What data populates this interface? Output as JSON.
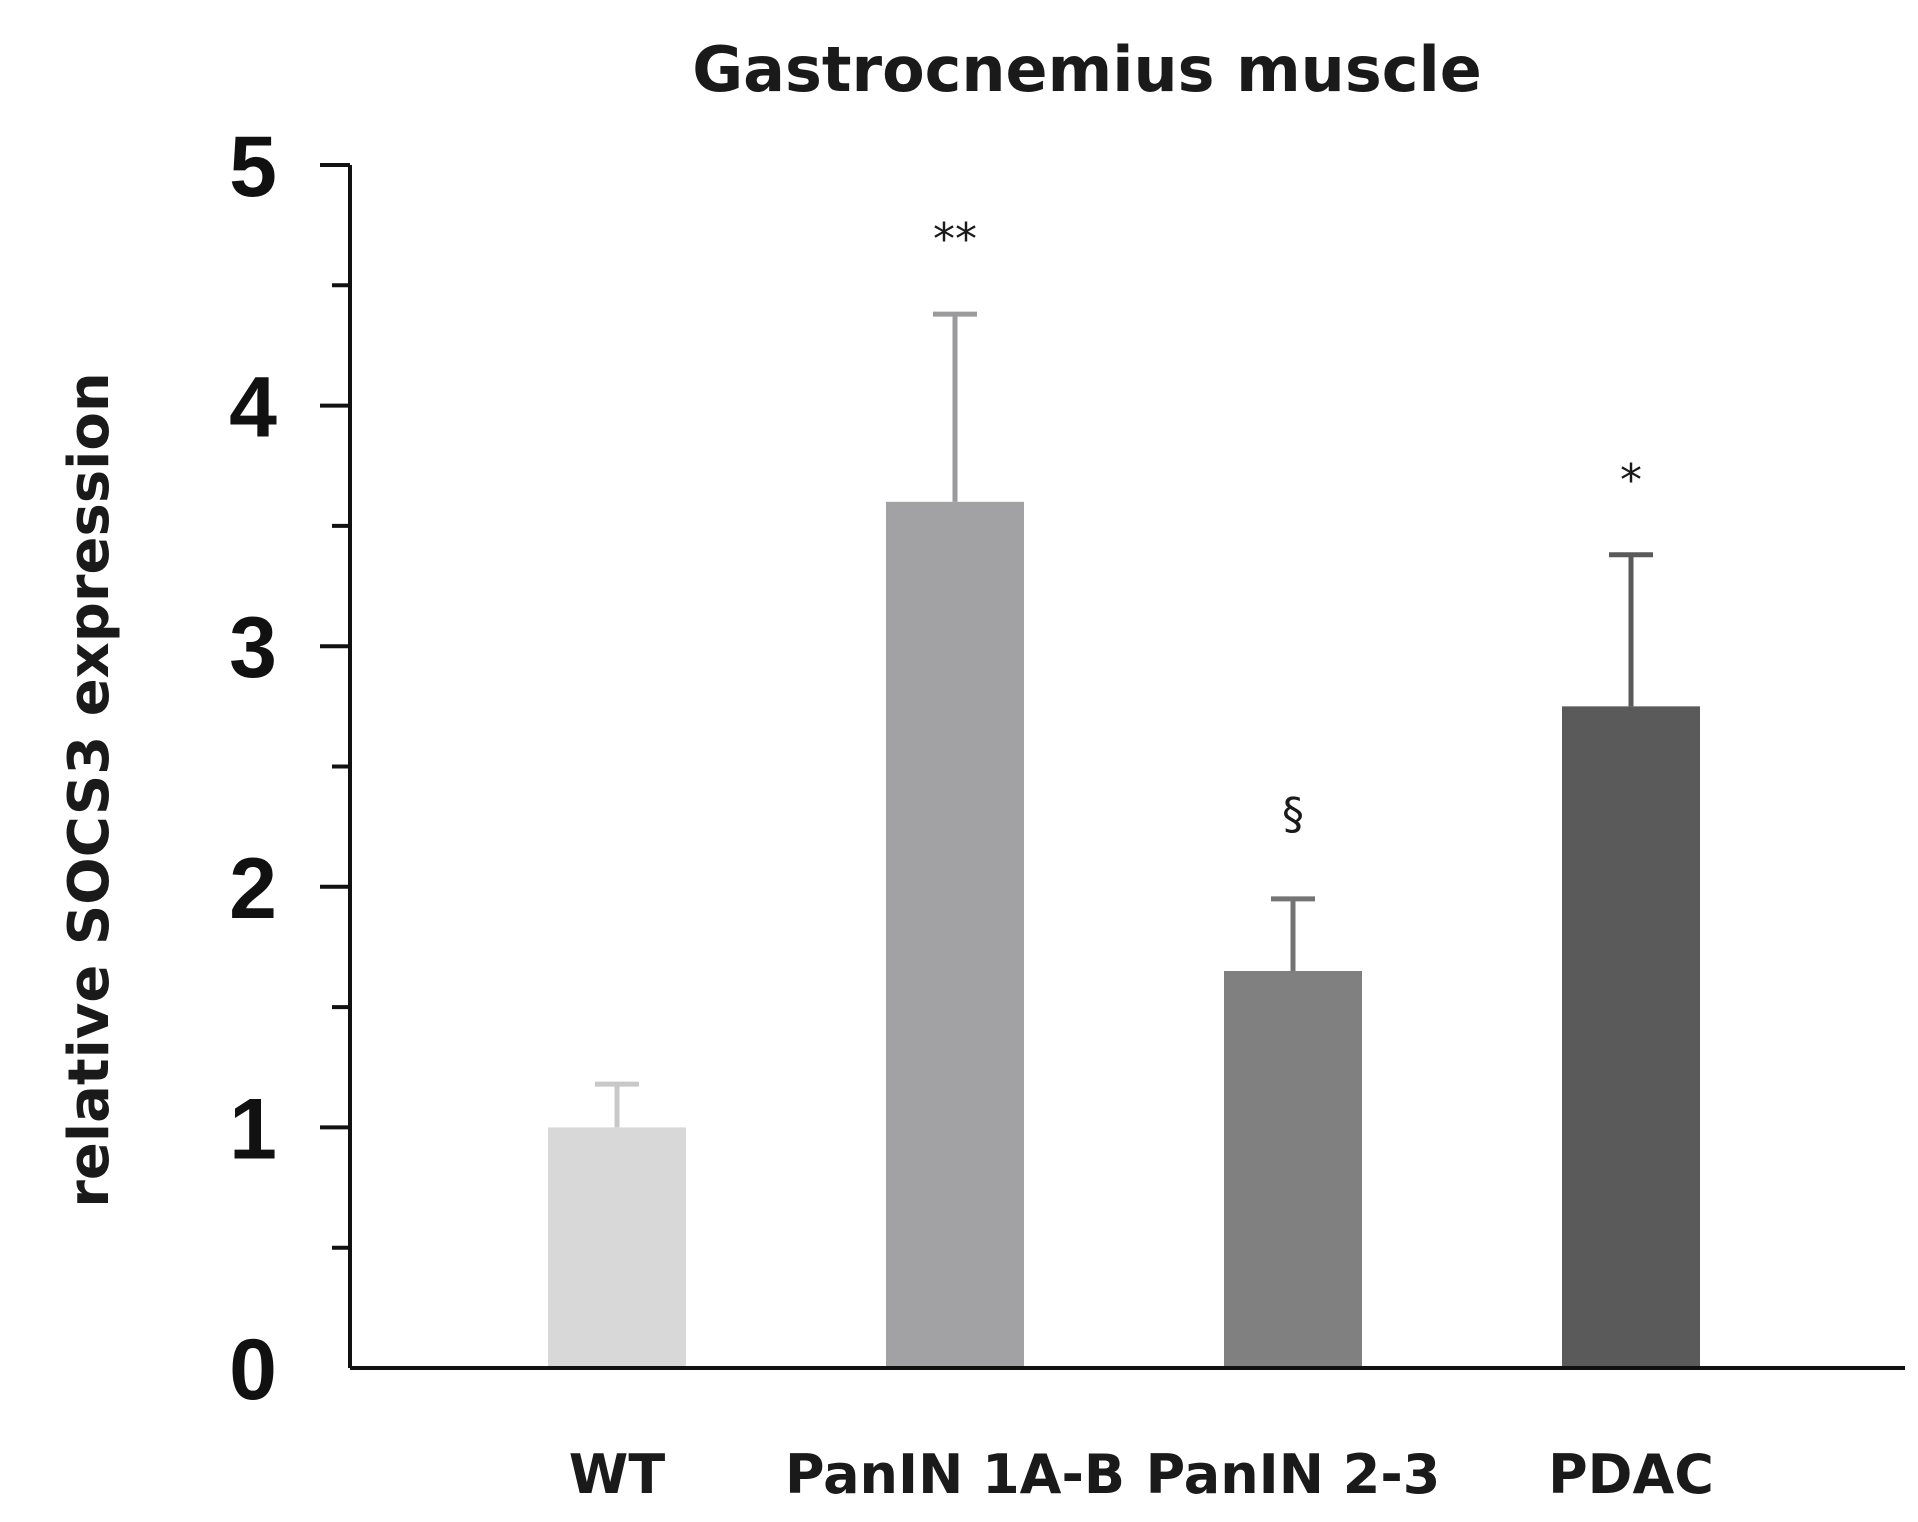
{
  "chart_data": {
    "type": "bar",
    "title": "Gastrocnemius muscle",
    "xlabel": "",
    "ylabel": "relative SOCS3 expression",
    "ylim": [
      0,
      5
    ],
    "yticks": [
      "0",
      "1",
      "2",
      "3",
      "4",
      "5"
    ],
    "minor_tick_step": 0.5,
    "categories": [
      "WT",
      "PanIN 1A-B",
      "PanIN 2-3",
      "PDAC"
    ],
    "values": [
      1.0,
      3.6,
      1.65,
      2.75
    ],
    "errors": [
      0.18,
      0.78,
      0.3,
      0.63
    ],
    "annotations": [
      "",
      "**",
      "§",
      "*"
    ],
    "bar_colors": [
      "#d8d8d8",
      "#a2a2a4",
      "#808080",
      "#5a5a5a"
    ],
    "error_colors": [
      "#c8c8c8",
      "#9a9a9c",
      "#747474",
      "#5a5a5a"
    ],
    "grid": false,
    "legend": "none"
  }
}
